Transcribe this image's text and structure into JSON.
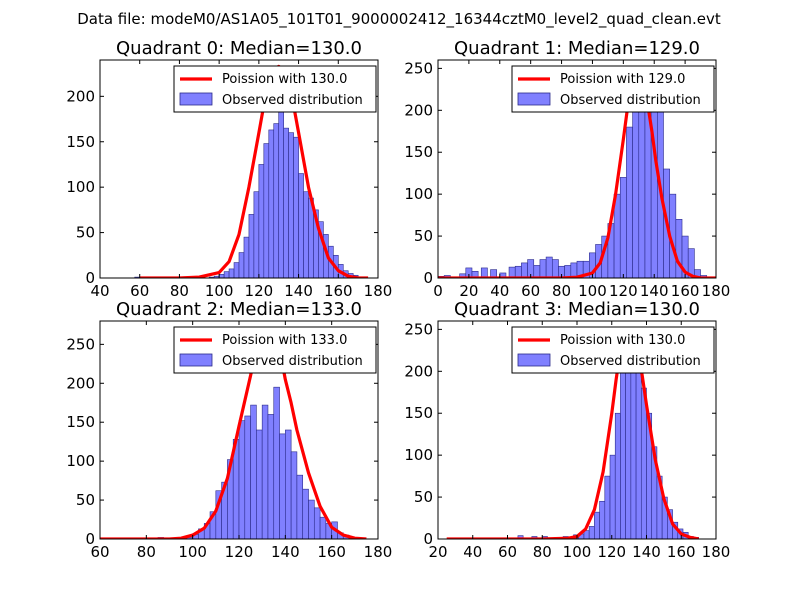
{
  "figure": {
    "suptitle": "Data file: modeM0/AS1A05_101T01_9000002412_16344cztM0_level2_quad_clean.evt",
    "colors": {
      "poisson": "#ff0000",
      "hist_fill": "#8080ff",
      "hist_edge": "#2a2a8a"
    }
  },
  "chart_data": [
    {
      "type": "bar",
      "title": "Quadrant 0: Median=130.0",
      "legend": [
        "Poission with 130.0",
        "Observed distribution"
      ],
      "legend_position": "top-right",
      "xlim": [
        40,
        180
      ],
      "ylim": [
        0,
        240
      ],
      "xticks": [
        40,
        60,
        80,
        100,
        120,
        140,
        160,
        180
      ],
      "yticks": [
        0,
        50,
        100,
        150,
        200
      ],
      "bin_width": 2.5,
      "hist": [
        [
          57.5,
          1
        ],
        [
          70,
          1
        ],
        [
          80,
          1
        ],
        [
          95,
          1
        ],
        [
          97.5,
          2
        ],
        [
          100,
          4
        ],
        [
          102.5,
          7
        ],
        [
          105,
          10
        ],
        [
          107.5,
          17
        ],
        [
          110,
          28
        ],
        [
          112.5,
          45
        ],
        [
          115,
          70
        ],
        [
          117.5,
          95
        ],
        [
          120,
          125
        ],
        [
          122.5,
          148
        ],
        [
          125,
          163
        ],
        [
          127.5,
          170
        ],
        [
          130,
          190
        ],
        [
          132.5,
          165
        ],
        [
          135,
          160
        ],
        [
          137.5,
          155
        ],
        [
          140,
          115
        ],
        [
          142.5,
          95
        ],
        [
          145,
          88
        ],
        [
          147.5,
          75
        ],
        [
          150,
          62
        ],
        [
          152.5,
          48
        ],
        [
          155,
          35
        ],
        [
          157.5,
          25
        ],
        [
          160,
          15
        ],
        [
          162.5,
          8
        ],
        [
          165,
          5
        ],
        [
          167.5,
          3
        ],
        [
          170,
          1
        ]
      ],
      "poisson": [
        [
          60,
          0
        ],
        [
          80,
          0
        ],
        [
          90,
          1
        ],
        [
          100,
          6
        ],
        [
          105,
          18
        ],
        [
          110,
          48
        ],
        [
          115,
          100
        ],
        [
          120,
          160
        ],
        [
          122.5,
          190
        ],
        [
          125,
          215
        ],
        [
          127.5,
          230
        ],
        [
          130,
          233
        ],
        [
          132.5,
          230
        ],
        [
          135,
          215
        ],
        [
          137.5,
          190
        ],
        [
          140,
          160
        ],
        [
          145,
          100
        ],
        [
          150,
          55
        ],
        [
          155,
          22
        ],
        [
          160,
          8
        ],
        [
          165,
          2
        ],
        [
          170,
          0
        ],
        [
          175,
          0
        ]
      ]
    },
    {
      "type": "bar",
      "title": "Quadrant 1: Median=129.0",
      "legend": [
        "Poission with 129.0",
        "Observed distribution"
      ],
      "legend_position": "top-right",
      "xlim": [
        0,
        180
      ],
      "ylim": [
        0,
        260
      ],
      "xticks": [
        0,
        20,
        40,
        60,
        80,
        100,
        120,
        140,
        160,
        180
      ],
      "yticks": [
        0,
        50,
        100,
        150,
        200,
        250
      ],
      "bin_width": 4,
      "hist": [
        [
          0,
          2
        ],
        [
          4,
          3
        ],
        [
          14,
          5
        ],
        [
          18,
          12
        ],
        [
          22,
          8
        ],
        [
          28,
          12
        ],
        [
          34,
          10
        ],
        [
          40,
          6
        ],
        [
          46,
          13
        ],
        [
          50,
          14
        ],
        [
          54,
          18
        ],
        [
          58,
          22
        ],
        [
          62,
          15
        ],
        [
          66,
          22
        ],
        [
          70,
          25
        ],
        [
          74,
          22
        ],
        [
          78,
          14
        ],
        [
          82,
          15
        ],
        [
          86,
          18
        ],
        [
          90,
          20
        ],
        [
          94,
          20
        ],
        [
          98,
          30
        ],
        [
          102,
          40
        ],
        [
          106,
          50
        ],
        [
          110,
          65
        ],
        [
          114,
          100
        ],
        [
          118,
          120
        ],
        [
          122,
          180
        ],
        [
          126,
          240
        ],
        [
          130,
          250
        ],
        [
          134,
          240
        ],
        [
          138,
          200
        ],
        [
          142,
          240
        ],
        [
          146,
          130
        ],
        [
          150,
          100
        ],
        [
          154,
          70
        ],
        [
          158,
          50
        ],
        [
          162,
          35
        ],
        [
          166,
          10
        ],
        [
          170,
          3
        ],
        [
          174,
          1
        ]
      ],
      "poisson": [
        [
          0,
          0
        ],
        [
          80,
          0
        ],
        [
          90,
          1
        ],
        [
          100,
          6
        ],
        [
          105,
          18
        ],
        [
          110,
          48
        ],
        [
          115,
          100
        ],
        [
          120,
          165
        ],
        [
          122.5,
          200
        ],
        [
          125,
          230
        ],
        [
          127.5,
          244
        ],
        [
          129,
          248
        ],
        [
          131,
          244
        ],
        [
          133.5,
          230
        ],
        [
          136,
          205
        ],
        [
          138.5,
          175
        ],
        [
          141,
          140
        ],
        [
          145,
          95
        ],
        [
          150,
          50
        ],
        [
          155,
          20
        ],
        [
          160,
          7
        ],
        [
          165,
          2
        ],
        [
          170,
          0
        ],
        [
          180,
          0
        ]
      ]
    },
    {
      "type": "bar",
      "title": "Quadrant 2: Median=133.0",
      "legend": [
        "Poission with 133.0",
        "Observed distribution"
      ],
      "legend_position": "top-right",
      "xlim": [
        60,
        180
      ],
      "ylim": [
        0,
        280
      ],
      "xticks": [
        60,
        80,
        100,
        120,
        140,
        160,
        180
      ],
      "yticks": [
        0,
        50,
        100,
        150,
        200,
        250
      ],
      "bin_width": 2.5,
      "hist": [
        [
          60,
          1
        ],
        [
          67.5,
          1
        ],
        [
          85,
          2
        ],
        [
          95,
          1
        ],
        [
          97.5,
          2
        ],
        [
          100,
          6
        ],
        [
          102.5,
          13
        ],
        [
          105,
          20
        ],
        [
          107.5,
          35
        ],
        [
          110,
          62
        ],
        [
          112.5,
          73
        ],
        [
          115,
          102
        ],
        [
          117.5,
          128
        ],
        [
          120,
          152
        ],
        [
          122.5,
          158
        ],
        [
          125,
          172
        ],
        [
          127.5,
          140
        ],
        [
          130,
          172
        ],
        [
          132.5,
          160
        ],
        [
          135,
          195
        ],
        [
          137.5,
          135
        ],
        [
          140,
          140
        ],
        [
          142.5,
          112
        ],
        [
          145,
          82
        ],
        [
          147.5,
          64
        ],
        [
          150,
          50
        ],
        [
          152.5,
          40
        ],
        [
          155,
          28
        ],
        [
          157.5,
          20
        ],
        [
          160,
          22
        ],
        [
          162.5,
          8
        ],
        [
          165,
          5
        ],
        [
          167.5,
          2
        ],
        [
          170,
          1
        ]
      ],
      "poisson": [
        [
          60,
          0
        ],
        [
          90,
          0
        ],
        [
          95,
          1
        ],
        [
          100,
          5
        ],
        [
          105,
          14
        ],
        [
          110,
          36
        ],
        [
          115,
          78
        ],
        [
          120,
          145
        ],
        [
          125,
          210
        ],
        [
          127.5,
          245
        ],
        [
          130,
          258
        ],
        [
          132.5,
          262
        ],
        [
          135,
          258
        ],
        [
          137.5,
          245
        ],
        [
          140,
          205
        ],
        [
          142.5,
          175
        ],
        [
          145,
          140
        ],
        [
          150,
          85
        ],
        [
          155,
          42
        ],
        [
          160,
          15
        ],
        [
          165,
          5
        ],
        [
          170,
          1
        ],
        [
          175,
          0
        ]
      ]
    },
    {
      "type": "bar",
      "title": "Quadrant 3: Median=130.0",
      "legend": [
        "Poission with 130.0",
        "Observed distribution"
      ],
      "legend_position": "top-right",
      "xlim": [
        20,
        180
      ],
      "ylim": [
        0,
        260
      ],
      "xticks": [
        20,
        40,
        60,
        80,
        100,
        120,
        140,
        160,
        180
      ],
      "yticks": [
        0,
        50,
        100,
        150,
        200,
        250
      ],
      "bin_width": 3,
      "hist": [
        [
          66,
          4
        ],
        [
          74,
          3
        ],
        [
          80,
          3
        ],
        [
          92,
          3
        ],
        [
          98,
          5
        ],
        [
          101,
          6
        ],
        [
          104,
          10
        ],
        [
          107,
          15
        ],
        [
          110,
          32
        ],
        [
          113,
          45
        ],
        [
          116,
          75
        ],
        [
          119,
          100
        ],
        [
          122,
          150
        ],
        [
          125,
          200
        ],
        [
          128,
          240
        ],
        [
          131,
          245
        ],
        [
          134,
          210
        ],
        [
          137,
          180
        ],
        [
          140,
          150
        ],
        [
          143,
          110
        ],
        [
          146,
          75
        ],
        [
          149,
          50
        ],
        [
          152,
          35
        ],
        [
          155,
          20
        ],
        [
          158,
          12
        ],
        [
          161,
          8
        ],
        [
          164,
          3
        ],
        [
          167,
          2
        ]
      ],
      "poisson": [
        [
          25,
          0
        ],
        [
          80,
          0
        ],
        [
          95,
          1
        ],
        [
          100,
          3
        ],
        [
          105,
          12
        ],
        [
          110,
          35
        ],
        [
          115,
          80
        ],
        [
          120,
          150
        ],
        [
          122.5,
          190
        ],
        [
          125,
          225
        ],
        [
          127.5,
          245
        ],
        [
          130,
          250
        ],
        [
          132.5,
          245
        ],
        [
          135,
          225
        ],
        [
          137.5,
          195
        ],
        [
          140,
          160
        ],
        [
          145,
          95
        ],
        [
          150,
          48
        ],
        [
          155,
          18
        ],
        [
          160,
          6
        ],
        [
          165,
          2
        ],
        [
          170,
          0
        ]
      ]
    }
  ]
}
